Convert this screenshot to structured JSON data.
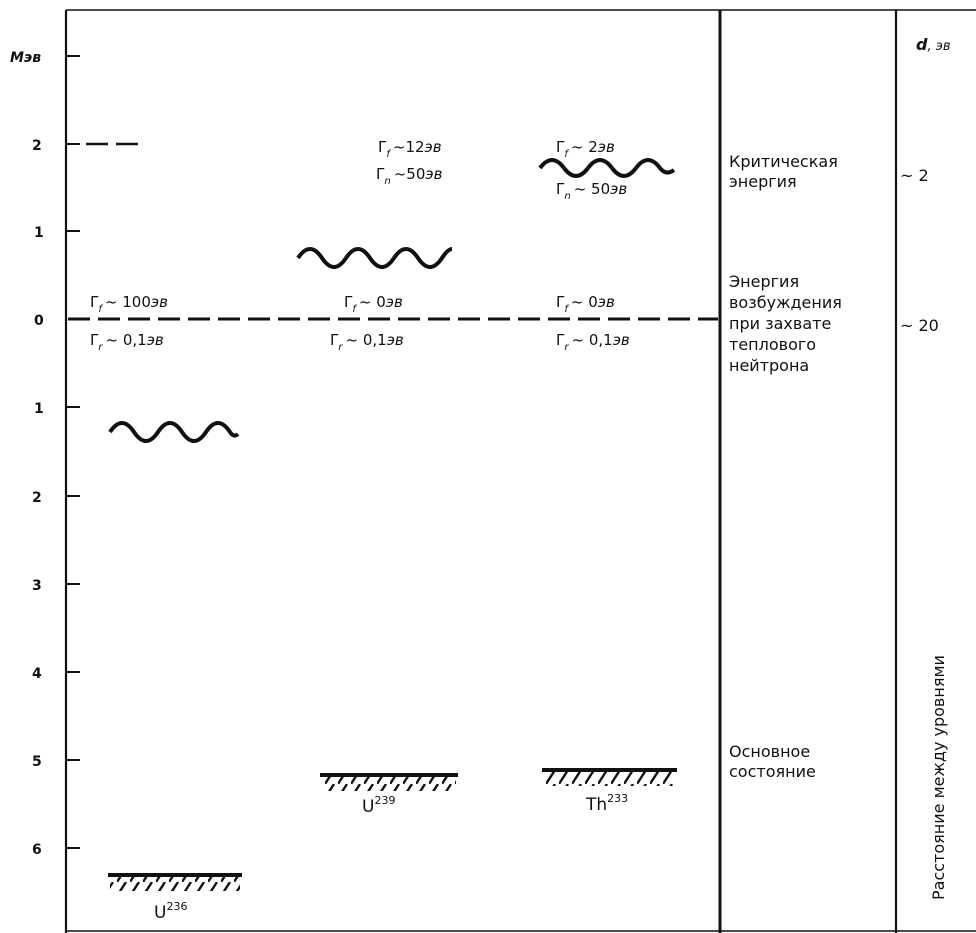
{
  "axis": {
    "unit": "Мэв",
    "ticks": [
      "2",
      "1",
      "0",
      "1",
      "2",
      "3",
      "4",
      "5",
      "6"
    ]
  },
  "spacing": {
    "header_symbol": "d",
    "header_unit": ", эв",
    "values": [
      "~ 2",
      "~ 20"
    ],
    "vertical_caption": "Расстояние между уровнями"
  },
  "nuclei": [
    {
      "symbol": "U",
      "mass": "236",
      "gamma_f": {
        "sym": "Γ",
        "sub": "f",
        "rest": "~ 100",
        "unit": "эв"
      },
      "gamma_r": {
        "sym": "Γ",
        "sub": "r",
        "rest": "~ 0,1",
        "unit": "эв"
      }
    },
    {
      "symbol": "U",
      "mass": "239",
      "gamma_f_upper": {
        "sym": "Γ",
        "sub": "f",
        "rest": "~12",
        "unit": "эв"
      },
      "gamma_n_upper": {
        "sym": "Γ",
        "sub": "n",
        "rest": "~50",
        "unit": "эв"
      },
      "gamma_f": {
        "sym": "Γ",
        "sub": "f",
        "rest": "~ 0",
        "unit": "эв"
      },
      "gamma_r": {
        "sym": "Γ",
        "sub": "r",
        "rest": "~ 0,1",
        "unit": "эв"
      }
    },
    {
      "symbol": "Th",
      "mass": "233",
      "gamma_f_upper": {
        "sym": "Γ",
        "sub": "f",
        "rest": "~ 2",
        "unit": "эв"
      },
      "gamma_n_upper": {
        "sym": "Γ",
        "sub": "n",
        "rest": "~ 50",
        "unit": "эв"
      },
      "gamma_f": {
        "sym": "Γ",
        "sub": "f",
        "rest": "~ 0",
        "unit": "эв"
      },
      "gamma_r": {
        "sym": "Γ",
        "sub": "r",
        "rest": "~ 0,1",
        "unit": "эв"
      }
    }
  ],
  "labels": {
    "critical": [
      "Критическая",
      "энергия"
    ],
    "excitation": [
      "Энергия",
      "возбуждения",
      "при захвате",
      "теплового",
      "нейтрона"
    ],
    "ground": [
      "Основное",
      "состояние"
    ]
  }
}
